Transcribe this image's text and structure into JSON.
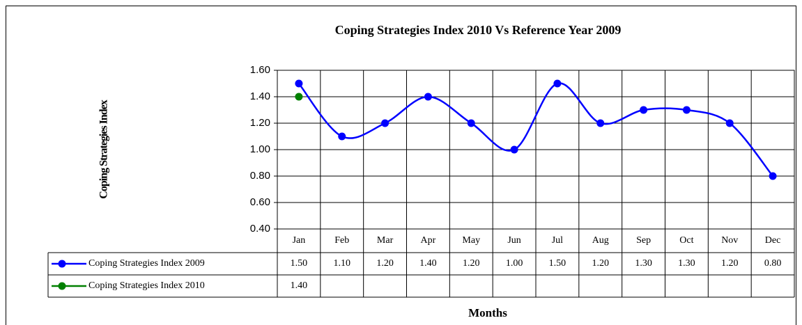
{
  "chart_data": {
    "type": "line",
    "title": "Coping Strategies Index 2010 Vs Reference Year 2009",
    "y_label": "Coping Strategies Index",
    "x_label": "Months",
    "categories": [
      "Jan",
      "Feb",
      "Mar",
      "Apr",
      "May",
      "Jun",
      "Jul",
      "Aug",
      "Sep",
      "Oct",
      "Nov",
      "Dec"
    ],
    "series": [
      {
        "name": "Coping Strategies Index 2009",
        "color": "#0000ff",
        "values": [
          1.5,
          1.1,
          1.2,
          1.4,
          1.2,
          1.0,
          1.5,
          1.2,
          1.3,
          1.3,
          1.2,
          0.8
        ],
        "value_labels": [
          "1.50",
          "1.10",
          "1.20",
          "1.40",
          "1.20",
          "1.00",
          "1.50",
          "1.20",
          "1.30",
          "1.30",
          "1.20",
          "0.80"
        ]
      },
      {
        "name": "Coping Strategies Index 2010",
        "color": "#008000",
        "values": [
          1.4,
          null,
          null,
          null,
          null,
          null,
          null,
          null,
          null,
          null,
          null,
          null
        ],
        "value_labels": [
          "1.40",
          null,
          null,
          null,
          null,
          null,
          null,
          null,
          null,
          null,
          null,
          null
        ]
      }
    ],
    "ylim": [
      0.4,
      1.6
    ],
    "yticks": [
      {
        "value": 0.4,
        "label": "0.40"
      },
      {
        "value": 0.6,
        "label": "0.60"
      },
      {
        "value": 0.8,
        "label": "0.80"
      },
      {
        "value": 1.0,
        "label": "1.00"
      },
      {
        "value": 1.2,
        "label": "1.20"
      },
      {
        "value": 1.4,
        "label": "1.40"
      },
      {
        "value": 1.6,
        "label": "1.60"
      }
    ],
    "grid": true,
    "smooth": true
  }
}
